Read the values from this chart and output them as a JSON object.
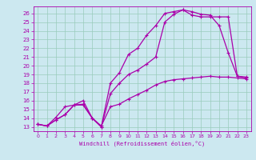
{
  "xlabel": "Windchill (Refroidissement éolien,°C)",
  "background_color": "#cce8f0",
  "grid_color": "#99ccbb",
  "line_color": "#aa00aa",
  "spine_color": "#884488",
  "xlim": [
    -0.5,
    23.5
  ],
  "ylim": [
    12.5,
    26.8
  ],
  "xticks": [
    0,
    1,
    2,
    3,
    4,
    5,
    6,
    7,
    8,
    9,
    10,
    11,
    12,
    13,
    14,
    15,
    16,
    17,
    18,
    19,
    20,
    21,
    22,
    23
  ],
  "yticks": [
    13,
    14,
    15,
    16,
    17,
    18,
    19,
    20,
    21,
    22,
    23,
    24,
    25,
    26
  ],
  "series1_x": [
    0,
    1,
    2,
    3,
    4,
    5,
    6,
    7,
    8,
    9,
    10,
    11,
    12,
    13,
    14,
    15,
    16,
    17,
    18,
    19,
    20,
    21,
    22,
    23
  ],
  "series1_y": [
    13.3,
    13.1,
    13.8,
    14.4,
    15.5,
    15.6,
    14.0,
    13.1,
    15.3,
    15.6,
    16.2,
    16.7,
    17.2,
    17.8,
    18.2,
    18.4,
    18.5,
    18.6,
    18.7,
    18.8,
    18.7,
    18.7,
    18.6,
    18.5
  ],
  "series2_x": [
    0,
    1,
    2,
    3,
    4,
    5,
    6,
    7,
    8,
    9,
    10,
    11,
    12,
    13,
    14,
    15,
    16,
    17,
    18,
    19,
    20,
    21,
    22,
    23
  ],
  "series2_y": [
    13.3,
    13.1,
    14.1,
    15.3,
    15.5,
    16.0,
    14.0,
    13.0,
    18.0,
    19.2,
    21.3,
    22.0,
    23.5,
    24.6,
    26.0,
    26.2,
    26.4,
    25.8,
    25.6,
    25.6,
    25.6,
    25.6,
    18.8,
    18.7
  ],
  "series3_x": [
    0,
    1,
    2,
    3,
    4,
    5,
    6,
    7,
    8,
    9,
    10,
    11,
    12,
    13,
    14,
    15,
    16,
    17,
    18,
    19,
    20,
    21,
    22,
    23
  ],
  "series3_y": [
    13.3,
    13.1,
    13.8,
    14.4,
    15.5,
    15.5,
    14.0,
    13.0,
    16.8,
    18.0,
    19.0,
    19.5,
    20.2,
    21.0,
    25.0,
    25.9,
    26.4,
    26.2,
    25.9,
    25.8,
    24.6,
    21.5,
    18.8,
    18.6
  ]
}
